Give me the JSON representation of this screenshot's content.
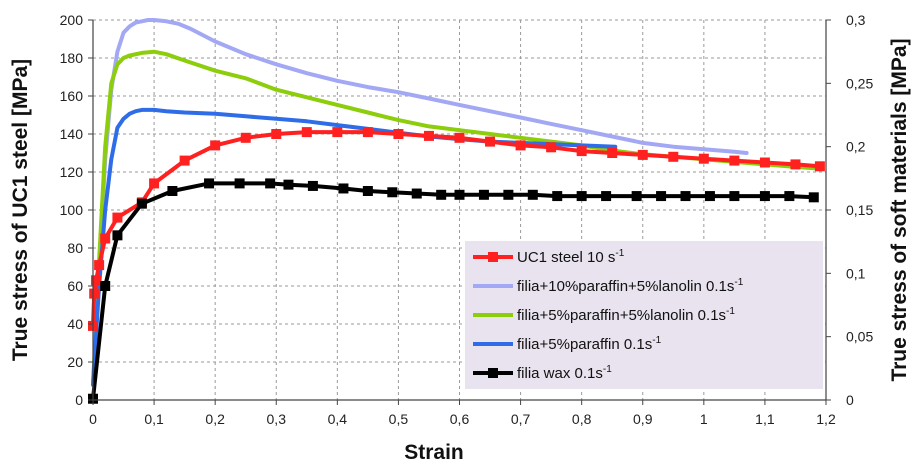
{
  "chart_data": {
    "type": "line",
    "xlabel": "Strain",
    "ylabel": "True stress  of  UC1 steel [MPa]",
    "y2label": "True stress  of  soft materials [MPa]",
    "xlim": [
      0,
      1.2
    ],
    "ylim": [
      0,
      200
    ],
    "y2lim": [
      0,
      0.3
    ],
    "x_ticks": [
      "0",
      "0,1",
      "0,2",
      "0,3",
      "0,4",
      "0,5",
      "0,6",
      "0,7",
      "0,8",
      "0,9",
      "1",
      "1,1",
      "1,2"
    ],
    "y_ticks": [
      "0",
      "20",
      "40",
      "60",
      "80",
      "100",
      "120",
      "140",
      "160",
      "180",
      "200"
    ],
    "y2_ticks": [
      "0",
      "0,05",
      "0,1",
      "0,15",
      "0,2",
      "0,25",
      "0,3"
    ],
    "grid": true,
    "legend_position": "bottom-right",
    "series": [
      {
        "name": "UC1 steel 10 s",
        "sup": "-1",
        "color": "#ff2020",
        "axis": "left",
        "marker": "square",
        "x": [
          0,
          0.002,
          0.005,
          0.01,
          0.02,
          0.04,
          0.08,
          0.1,
          0.15,
          0.2,
          0.25,
          0.3,
          0.35,
          0.4,
          0.45,
          0.5,
          0.55,
          0.6,
          0.65,
          0.7,
          0.75,
          0.8,
          0.85,
          0.9,
          0.95,
          1.0,
          1.05,
          1.1,
          1.15,
          1.19
        ],
        "y": [
          39,
          56,
          63,
          71,
          85,
          96,
          104,
          114,
          126,
          134,
          138,
          140,
          141,
          141,
          141,
          140,
          139,
          138,
          136,
          134,
          133,
          131,
          130,
          129,
          128,
          127,
          126,
          125,
          124,
          123
        ]
      },
      {
        "name": "filia+10%paraffin+5%lanolin 0.1s",
        "sup": "-1",
        "color": "#a3a8f5",
        "axis": "right",
        "marker": "none",
        "x": [
          0,
          0.01,
          0.02,
          0.03,
          0.04,
          0.05,
          0.06,
          0.07,
          0.08,
          0.09,
          0.1,
          0.12,
          0.14,
          0.16,
          0.2,
          0.25,
          0.3,
          0.35,
          0.4,
          0.45,
          0.5,
          0.55,
          0.6,
          0.65,
          0.7,
          0.75,
          0.8,
          0.85,
          0.9,
          0.95,
          1.0,
          1.05,
          1.07
        ],
        "y": [
          0.012,
          0.1,
          0.19,
          0.245,
          0.275,
          0.29,
          0.295,
          0.298,
          0.299,
          0.3,
          0.3,
          0.299,
          0.297,
          0.293,
          0.283,
          0.273,
          0.265,
          0.258,
          0.252,
          0.247,
          0.243,
          0.238,
          0.233,
          0.228,
          0.223,
          0.218,
          0.213,
          0.208,
          0.203,
          0.2,
          0.198,
          0.196,
          0.195
        ]
      },
      {
        "name": "filia+5%paraffin+5%lanolin 0.1s",
        "sup": "-1",
        "color": "#8ccd0c",
        "axis": "right",
        "marker": "none",
        "x": [
          0,
          0.01,
          0.02,
          0.03,
          0.04,
          0.05,
          0.06,
          0.08,
          0.1,
          0.12,
          0.15,
          0.2,
          0.25,
          0.3,
          0.35,
          0.4,
          0.45,
          0.5,
          0.55,
          0.6,
          0.65,
          0.7,
          0.75,
          0.8,
          0.85,
          0.9,
          0.95,
          1.0,
          1.05,
          1.1,
          1.15,
          1.18
        ],
        "y": [
          0.012,
          0.11,
          0.2,
          0.25,
          0.265,
          0.27,
          0.272,
          0.274,
          0.275,
          0.273,
          0.268,
          0.26,
          0.254,
          0.245,
          0.239,
          0.233,
          0.227,
          0.221,
          0.216,
          0.213,
          0.21,
          0.207,
          0.204,
          0.201,
          0.197,
          0.194,
          0.192,
          0.19,
          0.188,
          0.186,
          0.184,
          0.183
        ]
      },
      {
        "name": "filia+5%paraffin 0.1s",
        "sup": "-1",
        "color": "#2f6de8",
        "axis": "right",
        "marker": "none",
        "x": [
          0,
          0.01,
          0.02,
          0.03,
          0.04,
          0.05,
          0.06,
          0.07,
          0.08,
          0.1,
          0.12,
          0.15,
          0.2,
          0.25,
          0.3,
          0.35,
          0.4,
          0.45,
          0.5,
          0.55,
          0.6,
          0.65,
          0.7,
          0.75,
          0.8,
          0.855
        ],
        "y": [
          0.012,
          0.09,
          0.15,
          0.19,
          0.215,
          0.222,
          0.226,
          0.228,
          0.229,
          0.229,
          0.228,
          0.227,
          0.226,
          0.224,
          0.222,
          0.22,
          0.217,
          0.214,
          0.211,
          0.208,
          0.206,
          0.204,
          0.203,
          0.202,
          0.201,
          0.2
        ]
      },
      {
        "name": "filia wax 0.1s",
        "sup": "-1",
        "color": "#000000",
        "axis": "right",
        "marker": "square",
        "x": [
          0,
          0.02,
          0.04,
          0.08,
          0.13,
          0.19,
          0.24,
          0.29,
          0.32,
          0.36,
          0.41,
          0.45,
          0.49,
          0.53,
          0.57,
          0.6,
          0.64,
          0.68,
          0.72,
          0.76,
          0.8,
          0.84,
          0.89,
          0.93,
          0.97,
          1.01,
          1.05,
          1.1,
          1.14,
          1.18
        ],
        "y": [
          0.001,
          0.09,
          0.13,
          0.155,
          0.165,
          0.171,
          0.171,
          0.171,
          0.17,
          0.169,
          0.167,
          0.165,
          0.164,
          0.163,
          0.162,
          0.162,
          0.162,
          0.162,
          0.162,
          0.161,
          0.161,
          0.161,
          0.161,
          0.161,
          0.161,
          0.161,
          0.161,
          0.161,
          0.161,
          0.16
        ]
      }
    ]
  }
}
